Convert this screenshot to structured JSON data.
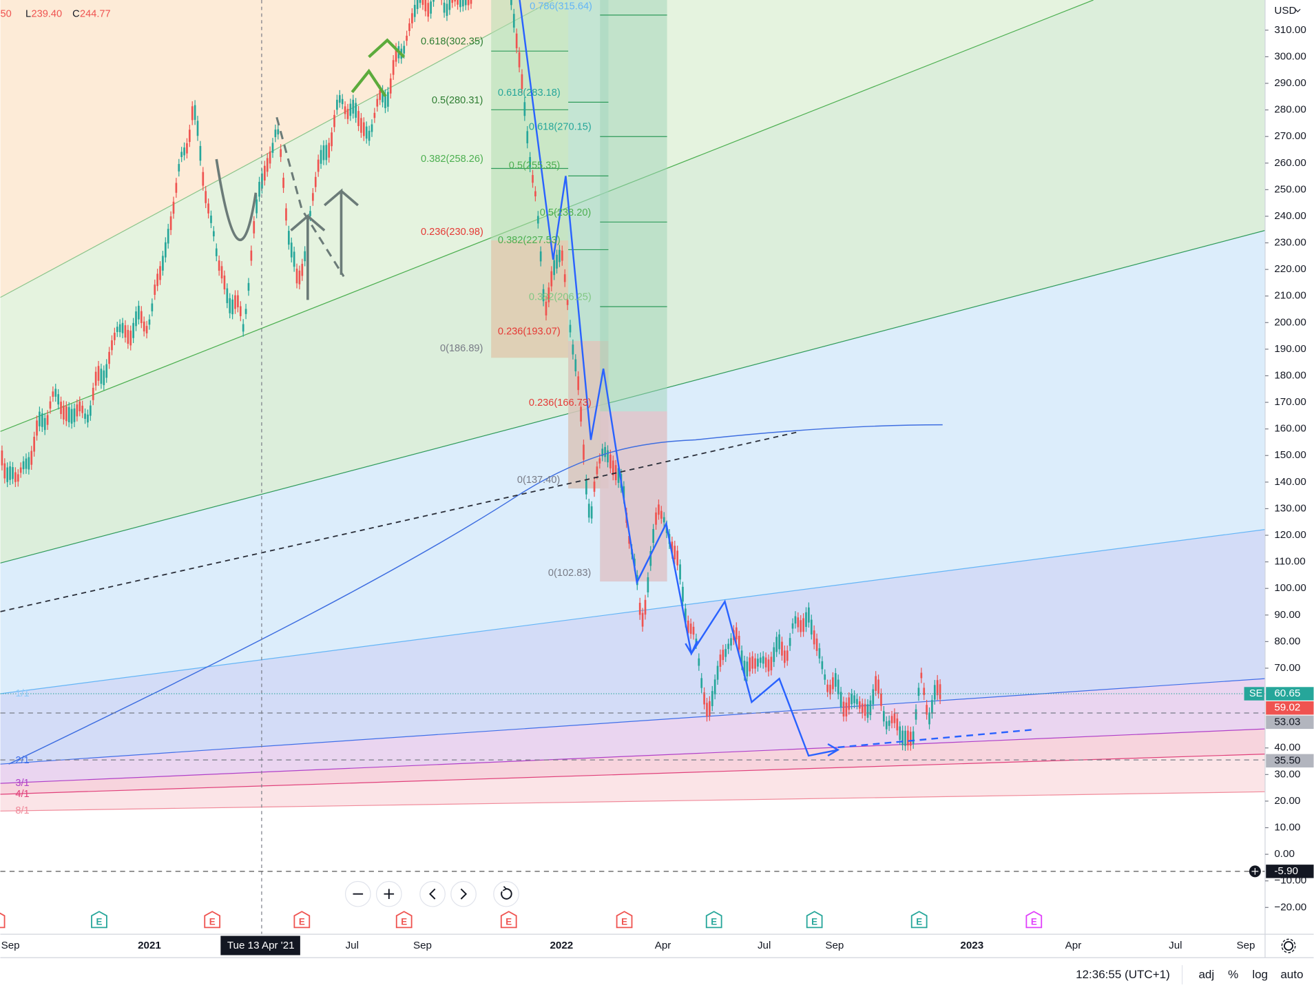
{
  "header": {
    "open_tail": "50",
    "low_label": "L",
    "low": "239.40",
    "close_label": "C",
    "close": "244.77"
  },
  "price_axis": {
    "currency": "USD",
    "ticks": [
      {
        "value": 310,
        "label": "310.00"
      },
      {
        "value": 300,
        "label": "300.00"
      },
      {
        "value": 290,
        "label": "290.00"
      },
      {
        "value": 280,
        "label": "280.00"
      },
      {
        "value": 270,
        "label": "270.00"
      },
      {
        "value": 260,
        "label": "260.00"
      },
      {
        "value": 250,
        "label": "250.00"
      },
      {
        "value": 240,
        "label": "240.00"
      },
      {
        "value": 230,
        "label": "230.00"
      },
      {
        "value": 220,
        "label": "220.00"
      },
      {
        "value": 210,
        "label": "210.00"
      },
      {
        "value": 200,
        "label": "200.00"
      },
      {
        "value": 190,
        "label": "190.00"
      },
      {
        "value": 180,
        "label": "180.00"
      },
      {
        "value": 170,
        "label": "170.00"
      },
      {
        "value": 160,
        "label": "160.00"
      },
      {
        "value": 150,
        "label": "150.00"
      },
      {
        "value": 140,
        "label": "140.00"
      },
      {
        "value": 130,
        "label": "130.00"
      },
      {
        "value": 120,
        "label": "120.00"
      },
      {
        "value": 110,
        "label": "110.00"
      },
      {
        "value": 100,
        "label": "100.00"
      },
      {
        "value": 90,
        "label": "90.00"
      },
      {
        "value": 80,
        "label": "80.00"
      },
      {
        "value": 70,
        "label": "70.00"
      },
      {
        "value": 40,
        "label": "40.00"
      },
      {
        "value": 30,
        "label": "30.00"
      },
      {
        "value": 20,
        "label": "20.00"
      },
      {
        "value": 10,
        "label": "10.00"
      },
      {
        "value": 0,
        "label": "0.00"
      },
      {
        "value": -10,
        "label": "−10.00"
      },
      {
        "value": -20,
        "label": "−20.00"
      }
    ]
  },
  "badges": [
    {
      "symbol": "SE",
      "value": 60.65,
      "label": "60.65"
    },
    {
      "value": 59.02,
      "label": "59.02"
    },
    {
      "value": 53.03,
      "label": "53.03"
    },
    {
      "value": 35.5,
      "label": "35.50"
    },
    {
      "value": -5.9,
      "label": "-5.90"
    }
  ],
  "fib_labels": [
    "0.786(315.64)",
    "0.618(302.35)",
    "0.5(280.31)",
    "0.382(258.26)",
    "0.236(230.98)",
    "0(186.89)",
    "0.618(283.18)",
    "0.5(255.35)",
    "0.382(227.53)",
    "0.236(193.07)",
    "0(137.40)",
    "0.618(270.15)",
    "0.5(238.20)",
    "0.382(206.25)",
    "0.236(166.73)",
    "0(102.83)"
  ],
  "fan_labels": [
    "1/1",
    "2/1",
    "3/1",
    "4/1",
    "8/1"
  ],
  "earnings_markers": [
    "E",
    "E",
    "E",
    "E",
    "E",
    "E",
    "E",
    "E",
    "E",
    "E",
    "E"
  ],
  "time_axis": {
    "labels": [
      "Sep",
      "2021",
      "Jul",
      "Sep",
      "2022",
      "Apr",
      "Jul",
      "Sep",
      "2023",
      "Apr",
      "Jul",
      "Sep"
    ],
    "crosshair_label": "Tue 13 Apr '21"
  },
  "status_bar": {
    "time": "12:36:55 (UTC+1)",
    "buttons": [
      "adj",
      "%",
      "log",
      "auto"
    ]
  }
}
